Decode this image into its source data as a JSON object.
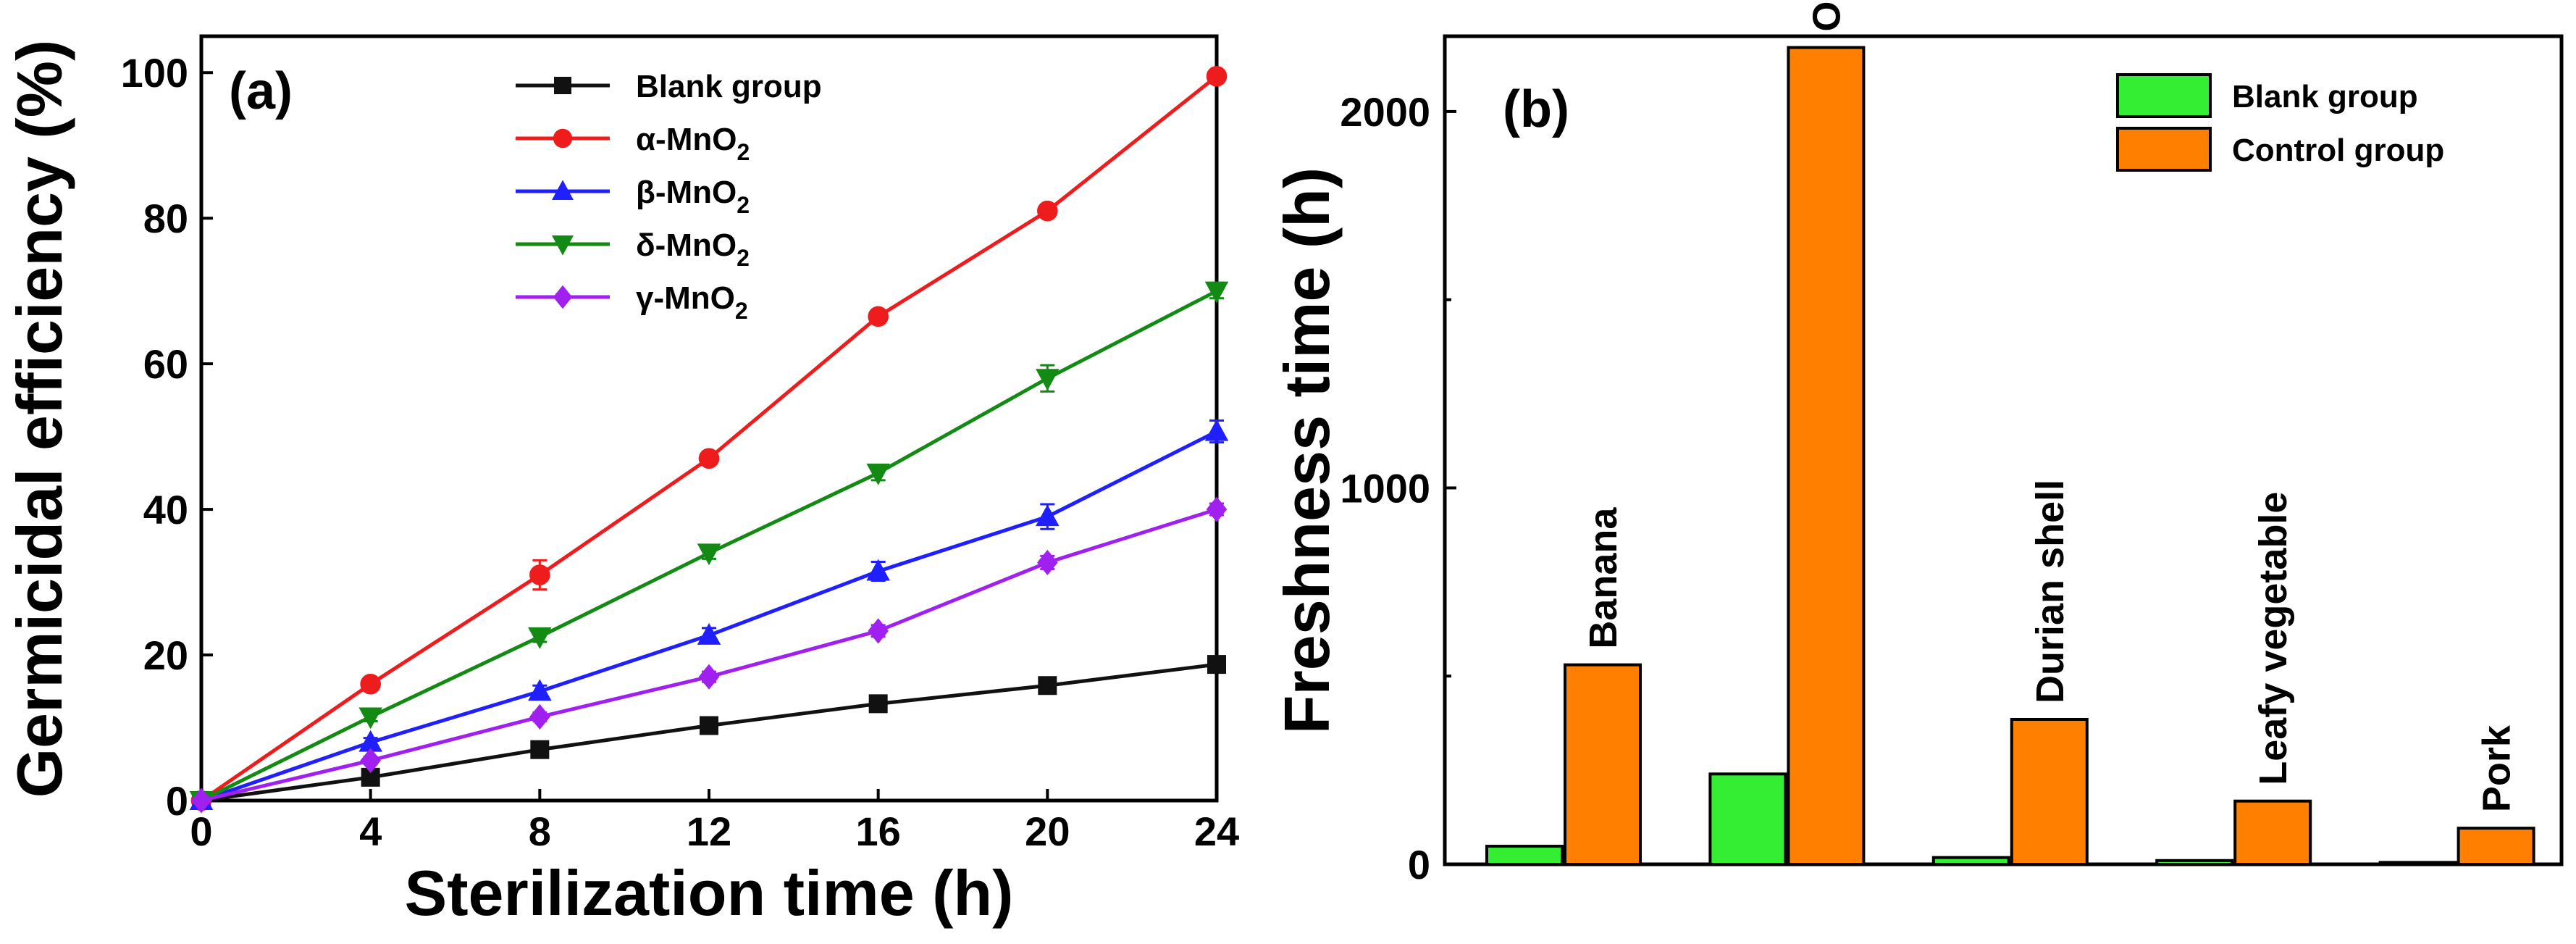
{
  "colors": {
    "blank": "#111111",
    "alpha": "#ee1c1c",
    "beta": "#1f1fff",
    "delta": "#138a13",
    "gamma": "#a020f0",
    "green_bar": "#33ee33",
    "orange_bar": "#ff7f00"
  },
  "chart_data": [
    {
      "type": "line",
      "panel": "(a)",
      "xlabel": "Sterilization time (h)",
      "ylabel": "Germicidal efficiency (%)",
      "xlim": [
        0,
        24
      ],
      "ylim": [
        0,
        105
      ],
      "x": [
        0,
        4,
        8,
        12,
        16,
        20,
        24
      ],
      "xticks": [
        "0",
        "4",
        "8",
        "12",
        "16",
        "20",
        "24"
      ],
      "yticks": [
        "0",
        "20",
        "40",
        "60",
        "80",
        "100"
      ],
      "legend_position": "top-center",
      "series": [
        {
          "name": "Blank group",
          "label_main": "Blank group",
          "label_sub": "",
          "marker": "square",
          "color": "#111111",
          "values": [
            0,
            3.2,
            7,
            10.3,
            13.3,
            15.8,
            18.7
          ],
          "errors": [
            0,
            0.4,
            0.5,
            0.5,
            0.6,
            0.6,
            0.7
          ]
        },
        {
          "name": "α-MnO2",
          "label_main": "α-MnO",
          "label_sub": "2",
          "marker": "circle",
          "color": "#ee1c1c",
          "values": [
            0,
            16,
            31,
            47,
            66.5,
            81,
            99.5
          ],
          "errors": [
            0,
            0.6,
            2,
            0.8,
            0.7,
            0.8,
            0.5
          ]
        },
        {
          "name": "β-MnO2",
          "label_main": "β-MnO",
          "label_sub": "2",
          "marker": "triangle-up",
          "color": "#1f1fff",
          "values": [
            0,
            8,
            15,
            22.7,
            31.5,
            39,
            50.7
          ],
          "errors": [
            0,
            0.6,
            0.8,
            1,
            1.3,
            1.7,
            1.5
          ]
        },
        {
          "name": "δ-MnO2",
          "label_main": "δ-MnO",
          "label_sub": "2",
          "marker": "triangle-down",
          "color": "#138a13",
          "values": [
            0,
            11.5,
            22.5,
            34,
            45,
            58,
            70
          ],
          "errors": [
            0,
            0.6,
            0.7,
            0.8,
            1,
            1.8,
            1
          ]
        },
        {
          "name": "γ-MnO2",
          "label_main": "γ-MnO",
          "label_sub": "2",
          "marker": "diamond",
          "color": "#a020f0",
          "values": [
            0,
            5.5,
            11.5,
            17,
            23.3,
            32.7,
            40
          ],
          "errors": [
            0,
            0.5,
            0.6,
            0.7,
            0.8,
            0.9,
            0.8
          ]
        }
      ]
    },
    {
      "type": "bar",
      "panel": "(b)",
      "xlabel": "",
      "ylabel": "Freshness time (h)",
      "ylim": [
        0,
        2200
      ],
      "yticks": [
        "0",
        "1000",
        "2000"
      ],
      "categories": [
        "Banana",
        "Orange",
        "Durian shell",
        "Leafy vegetable",
        "Pork"
      ],
      "legend_position": "top-right",
      "series": [
        {
          "name": "Blank group",
          "color": "#33ee33",
          "values": [
            48,
            240,
            18,
            10,
            5
          ]
        },
        {
          "name": "Control group",
          "color": "#ff7f00",
          "values": [
            530,
            2170,
            385,
            168,
            96
          ]
        }
      ]
    }
  ]
}
